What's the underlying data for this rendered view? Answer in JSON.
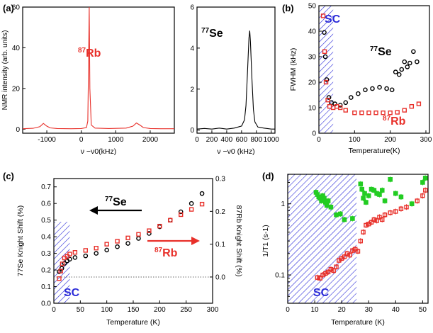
{
  "colors": {
    "rb": "#e8302a",
    "se": "#000000",
    "sc": "#2a2ad8",
    "green": "#22cc22",
    "hatch": "#2a2ad8"
  },
  "chart_data": [
    {
      "id": "a-rb",
      "panel": "(a)",
      "type": "line",
      "ylabel": "NMR intensity (arb. units)",
      "xlabel": "ν −ν0(kHz)",
      "nucleus_label": "87Rb",
      "xlim": [
        -1700,
        2700
      ],
      "ylim": [
        -2,
        60
      ],
      "xticks": [
        "-1000",
        "0",
        "1000",
        "2000"
      ],
      "yticks": [
        "0",
        "20",
        "40",
        "60"
      ],
      "x": [
        -1700,
        -1400,
        -1200,
        -1100,
        -1000,
        -900,
        -700,
        -300,
        0,
        150,
        190,
        210,
        230,
        250,
        290,
        400,
        800,
        1300,
        1500,
        1600,
        1700,
        1800,
        2000,
        2300,
        2700
      ],
      "y": [
        0.2,
        0.4,
        1.2,
        2.8,
        1.5,
        0.6,
        0.3,
        0.2,
        0.3,
        0.8,
        4,
        30,
        60,
        20,
        2,
        0.5,
        0.3,
        0.5,
        1.5,
        3.0,
        2.0,
        0.8,
        0.3,
        0.2,
        0.2
      ]
    },
    {
      "id": "a-se",
      "panel": "(a)",
      "type": "line",
      "xlabel": "ν −ν0 (kHz)",
      "nucleus_label": "77Se",
      "xlim": [
        0,
        1050
      ],
      "ylim": [
        -0.15,
        6
      ],
      "xticks": [
        "0",
        "200",
        "400",
        "600",
        "800",
        "1000"
      ],
      "yticks": [
        "0",
        "2",
        "4",
        "6"
      ],
      "x": [
        0,
        100,
        200,
        300,
        400,
        500,
        600,
        640,
        660,
        680,
        700,
        710,
        720,
        740,
        760,
        780,
        820,
        900,
        1000,
        1050
      ],
      "y": [
        0.05,
        0.08,
        0.05,
        0.1,
        0.05,
        0.1,
        0.2,
        0.5,
        1.2,
        2.8,
        4.5,
        4.85,
        4.3,
        2.5,
        1.0,
        0.4,
        0.15,
        0.1,
        0.05,
        0.05
      ]
    },
    {
      "id": "b",
      "panel": "(b)",
      "type": "scatter",
      "ylabel": "FWHM (kHz)",
      "xlabel": "Temperature(K)",
      "xlim": [
        0,
        310
      ],
      "ylim": [
        0,
        50
      ],
      "xticks": [
        "0",
        "100",
        "200",
        "300"
      ],
      "yticks": [
        "0",
        "10",
        "20",
        "30",
        "40",
        "50"
      ],
      "sc_region": [
        0,
        40
      ],
      "sc_label": "SC",
      "series": [
        {
          "name": "77Se",
          "color": "#000000",
          "marker": "circle",
          "x": [
            15,
            18,
            22,
            28,
            35,
            45,
            60,
            75,
            90,
            110,
            130,
            150,
            170,
            190,
            205,
            215,
            225,
            232,
            240,
            248,
            255,
            265,
            275
          ],
          "y": [
            39.5,
            30,
            21,
            14,
            12,
            11.5,
            11,
            12,
            14,
            15.5,
            17,
            17.5,
            18,
            17.5,
            17,
            24,
            23,
            25,
            28,
            26,
            27.5,
            32,
            28
          ]
        },
        {
          "name": "87Rb",
          "color": "#e8302a",
          "marker": "square",
          "x": [
            12,
            16,
            20,
            25,
            30,
            40,
            50,
            60,
            75,
            100,
            120,
            140,
            160,
            180,
            200,
            220,
            240,
            260,
            280
          ],
          "y": [
            46,
            32,
            20,
            13,
            10.5,
            10,
            10.5,
            10,
            9,
            8,
            8,
            8,
            8,
            8,
            8,
            8.2,
            9,
            10.5,
            11.5
          ]
        }
      ]
    },
    {
      "id": "c",
      "panel": "(c)",
      "type": "scatter",
      "ylabel": "77Se Knight Shift (%)",
      "ylabel2": "87Rb Knight Shift (%)",
      "xlabel": "Temperature (K)",
      "xlim": [
        0,
        300
      ],
      "ylim": [
        0,
        0.75
      ],
      "ylim2": [
        -0.08,
        0.3
      ],
      "xticks": [
        "0",
        "50",
        "100",
        "150",
        "200",
        "250",
        "300"
      ],
      "yticks": [
        "0.0",
        "0.1",
        "0.2",
        "0.3",
        "0.4",
        "0.5",
        "0.6",
        "0.7"
      ],
      "yticks2": [
        "0.0",
        "0.1",
        "0.2",
        "0.3"
      ],
      "sc_region": [
        0,
        30
      ],
      "sc_label": "SC",
      "series": [
        {
          "name": "77Se",
          "color": "#000000",
          "marker": "circle",
          "axis": "left",
          "x": [
            10,
            15,
            20,
            25,
            30,
            40,
            60,
            80,
            100,
            120,
            140,
            160,
            180,
            200,
            220,
            240,
            260,
            280
          ],
          "y": [
            0.19,
            0.21,
            0.24,
            0.255,
            0.265,
            0.275,
            0.285,
            0.3,
            0.32,
            0.34,
            0.36,
            0.39,
            0.42,
            0.46,
            0.5,
            0.55,
            0.6,
            0.66
          ]
        },
        {
          "name": "87Rb",
          "color": "#e8302a",
          "marker": "square",
          "axis": "right",
          "x": [
            10,
            13,
            16,
            20,
            25,
            30,
            40,
            60,
            80,
            100,
            120,
            140,
            160,
            180,
            200,
            220,
            240,
            260,
            280
          ],
          "y": [
            -0.005,
            0.018,
            0.04,
            0.058,
            0.063,
            0.07,
            0.075,
            0.081,
            0.088,
            0.1,
            0.109,
            0.119,
            0.13,
            0.141,
            0.155,
            0.173,
            0.19,
            0.206,
            0.222
          ]
        }
      ],
      "arrows": [
        {
          "label": "77Se",
          "dir": "left"
        },
        {
          "label": "87Rb",
          "dir": "right"
        }
      ]
    },
    {
      "id": "d",
      "panel": "(d)",
      "type": "scatter",
      "ylabel": "1/T1 (s-1)",
      "xlabel": "Temperature (K)",
      "xlim": [
        0,
        52
      ],
      "ylim_log": [
        0.04,
        2.6
      ],
      "xticks": [
        "0",
        "10",
        "20",
        "30",
        "40",
        "50"
      ],
      "yticks": [
        "0.1",
        "1"
      ],
      "sc_region": [
        0,
        25.5
      ],
      "sc_label": "SC",
      "series": [
        {
          "name": "77Se",
          "color": "#22cc22",
          "marker": "filled-square",
          "x": [
            10.5,
            11,
            11.5,
            12,
            12.5,
            13,
            13.5,
            14,
            14.5,
            15,
            16,
            18,
            19.5,
            21,
            24,
            27,
            27.5,
            28,
            28.5,
            29,
            30,
            31,
            32,
            33,
            34,
            35,
            36,
            38,
            40,
            42,
            46,
            50,
            51
          ],
          "y": [
            1.45,
            1.35,
            1.25,
            1.2,
            1.1,
            1.3,
            1.2,
            1.05,
            0.95,
            1.1,
            0.9,
            0.7,
            0.72,
            0.6,
            0.62,
            1.9,
            1.6,
            1.2,
            1.4,
            1.05,
            1.3,
            1.6,
            1.55,
            1.4,
            1.35,
            1.55,
            1.1,
            2.2,
            1.4,
            1.25,
            1.0,
            2.0,
            2.3
          ]
        },
        {
          "name": "87Rb",
          "color": "#e8302a",
          "marker": "square",
          "x": [
            11,
            12,
            13,
            14,
            15,
            16,
            17,
            18,
            19,
            20,
            21,
            22,
            23,
            24,
            25,
            26,
            27,
            28,
            29,
            30,
            31,
            32,
            33,
            34,
            35,
            36,
            38,
            40,
            42,
            44,
            48,
            50,
            51
          ],
          "y": [
            0.092,
            0.09,
            0.1,
            0.105,
            0.11,
            0.12,
            0.115,
            0.13,
            0.16,
            0.17,
            0.18,
            0.2,
            0.19,
            0.22,
            0.23,
            0.215,
            0.3,
            0.4,
            0.5,
            0.52,
            0.55,
            0.6,
            0.58,
            0.65,
            0.6,
            0.7,
            0.75,
            0.78,
            0.85,
            0.9,
            1.1,
            1.3,
            1.55
          ]
        }
      ]
    }
  ]
}
